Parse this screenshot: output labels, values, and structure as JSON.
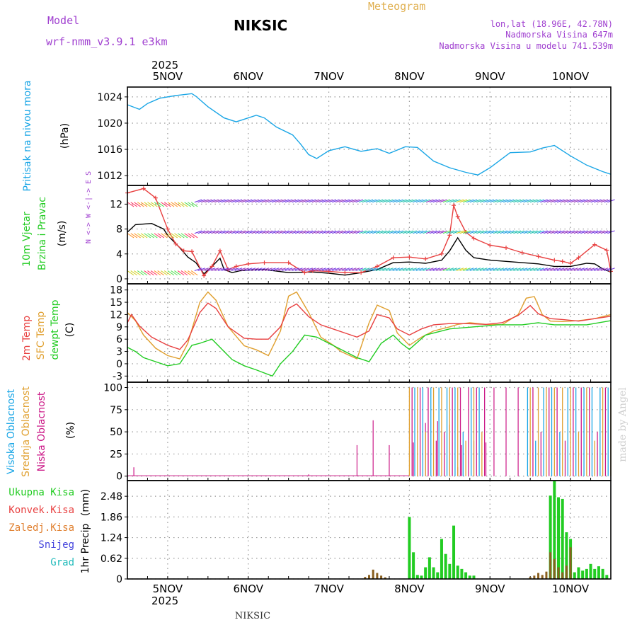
{
  "header": {
    "model_label": "Model",
    "model_name": "wrf-nmm_v3.9.1  e3km",
    "station": "NIKSIC",
    "meteogram": "Meteogram",
    "lonlat": "lon,lat (18.96E, 42.78N)",
    "elevation": "Nadmorska Visina 647m",
    "model_elevation": "Nadmorska Visina u modelu 741.539m",
    "footer_station": "NIKSIC",
    "credit": "made by Angel"
  },
  "colors": {
    "pressure": "#1aa6e6",
    "wind_speed": "#000000",
    "gust": "#e84040",
    "temp2m": "#e84040",
    "sfc": "#e0a030",
    "dewpt": "#22cc22",
    "high_cloud": "#1aa6e6",
    "mid_cloud": "#e0a030",
    "low_cloud": "#cc1a88",
    "total_precip": "#22cc22",
    "conv_precip": "#e84040",
    "frz_precip": "#e08030",
    "snow": "#4444dd",
    "hail": "#22bbbb",
    "violet": "#a040d0"
  },
  "chart_data": {
    "type": "line",
    "days": [
      "5NOV",
      "6NOV",
      "7NOV",
      "8NOV",
      "9NOV",
      "10NOV"
    ],
    "year": "2025",
    "x_start_day": -0.5,
    "x_end_day": 5.5,
    "panels": [
      {
        "id": "pressure",
        "ylabel_title": "Pritisak na nivou mora",
        "unit": "(hPa)",
        "yticks": [
          1012,
          1016,
          1020,
          1024
        ],
        "ylim": [
          1010.5,
          1025.5
        ],
        "series": [
          {
            "name": "Pritisak",
            "color_key": "pressure",
            "x": [
              -0.5,
              -0.35,
              -0.25,
              -0.1,
              0.1,
              0.3,
              0.35,
              0.5,
              0.7,
              0.85,
              0.95,
              1.1,
              1.2,
              1.35,
              1.55,
              1.65,
              1.75,
              1.85,
              2.0,
              2.2,
              2.4,
              2.6,
              2.75,
              2.95,
              3.1,
              3.3,
              3.5,
              3.7,
              3.85,
              4.0,
              4.25,
              4.5,
              4.65,
              4.8,
              5.0,
              5.2,
              5.4,
              5.5
            ],
            "y": [
              1022.8,
              1022.1,
              1023.0,
              1023.8,
              1024.2,
              1024.5,
              1024.1,
              1022.5,
              1020.8,
              1020.2,
              1020.6,
              1021.2,
              1020.8,
              1019.4,
              1018.2,
              1016.8,
              1015.2,
              1014.6,
              1015.8,
              1016.4,
              1015.7,
              1016.1,
              1015.4,
              1016.4,
              1016.3,
              1014.2,
              1013.2,
              1012.5,
              1012.1,
              1013.2,
              1015.5,
              1015.6,
              1016.2,
              1016.6,
              1015.0,
              1013.6,
              1012.6,
              1012.2
            ]
          }
        ]
      },
      {
        "id": "wind",
        "ylabel_title": "10m Vjetar",
        "ylabel_sub": "Brzina i Pravac",
        "unit": "(m/s)",
        "yticks": [
          0,
          4,
          8,
          12
        ],
        "ylim": [
          -0.8,
          15
        ],
        "compass": "N <-> W <-|-> E S",
        "series": [
          {
            "name": "Brzina vjetra",
            "color_key": "wind_speed",
            "x": [
              -0.5,
              -0.4,
              -0.2,
              -0.05,
              0.0,
              0.15,
              0.25,
              0.35,
              0.45,
              0.55,
              0.65,
              0.7,
              0.8,
              0.9,
              1.0,
              1.2,
              1.5,
              1.8,
              2.0,
              2.2,
              2.4,
              2.6,
              2.8,
              3.0,
              3.2,
              3.4,
              3.5,
              3.6,
              3.7,
              3.8,
              4.0,
              4.2,
              4.4,
              4.6,
              4.8,
              5.0,
              5.2,
              5.3,
              5.4,
              5.5
            ],
            "y": [
              7.5,
              8.7,
              8.9,
              8.0,
              7.0,
              5.0,
              3.5,
              2.6,
              0.8,
              2.0,
              3.3,
              1.5,
              1.0,
              1.3,
              1.4,
              1.5,
              1.0,
              1.1,
              0.9,
              0.6,
              1.0,
              1.5,
              2.6,
              2.7,
              2.5,
              3.0,
              4.5,
              6.6,
              4.6,
              3.4,
              3.0,
              2.8,
              2.6,
              2.4,
              2.0,
              2.0,
              2.5,
              2.4,
              1.6,
              1.1
            ]
          },
          {
            "name": "Udar vjetra",
            "color_key": "gust",
            "x": [
              -0.5,
              -0.3,
              -0.15,
              0.0,
              0.1,
              0.2,
              0.3,
              0.45,
              0.55,
              0.65,
              0.75,
              0.85,
              1.0,
              1.2,
              1.5,
              1.7,
              1.8,
              2.0,
              2.2,
              2.4,
              2.6,
              2.8,
              3.0,
              3.2,
              3.4,
              3.5,
              3.55,
              3.6,
              3.7,
              3.8,
              4.0,
              4.2,
              4.4,
              4.6,
              4.8,
              4.9,
              5.0,
              5.1,
              5.3,
              5.45,
              5.5
            ],
            "y": [
              13.8,
              14.5,
              13.0,
              8.0,
              5.6,
              4.5,
              4.4,
              0.5,
              2.0,
              4.5,
              1.5,
              2.0,
              2.4,
              2.6,
              2.6,
              1.0,
              1.3,
              1.2,
              1.0,
              1.0,
              2.0,
              3.4,
              3.5,
              3.2,
              4.0,
              7.0,
              11.8,
              10.0,
              7.5,
              6.5,
              5.4,
              5.0,
              4.2,
              3.6,
              3.0,
              2.8,
              2.5,
              3.4,
              5.5,
              4.6,
              1.2
            ]
          }
        ]
      },
      {
        "id": "temp",
        "ylabel_title": "2m Temp",
        "ylabel_sub": "SFC Temp",
        "ylabel_sub2": "dewpt Temp",
        "unit": "(C)",
        "yticks": [
          -3,
          0,
          3,
          6,
          9,
          12,
          15,
          18
        ],
        "ylim": [
          -4.5,
          19.5
        ],
        "series": [
          {
            "name": "SFC Temp",
            "color_key": "sfc",
            "x": [
              -0.5,
              -0.4,
              -0.3,
              -0.15,
              0.0,
              0.15,
              0.25,
              0.4,
              0.5,
              0.6,
              0.75,
              0.95,
              1.1,
              1.25,
              1.4,
              1.5,
              1.6,
              1.75,
              1.9,
              2.05,
              2.15,
              2.35,
              2.5,
              2.6,
              2.75,
              2.85,
              3.0,
              3.15,
              3.3,
              3.5,
              3.6,
              3.75,
              3.95,
              4.15,
              4.35,
              4.45,
              4.55,
              4.65,
              4.75,
              4.9,
              5.1,
              5.3,
              5.5
            ],
            "y": [
              12.5,
              10.5,
              7.0,
              3.8,
              2.0,
              1.2,
              5.0,
              15.0,
              17.5,
              15.5,
              9.0,
              4.4,
              3.4,
              2.0,
              8.0,
              16.5,
              17.5,
              12.5,
              6.5,
              4.6,
              3.0,
              1.2,
              10.0,
              14.3,
              13.0,
              7.5,
              4.5,
              6.5,
              8.0,
              9.0,
              9.6,
              10.0,
              9.6,
              9.5,
              12.0,
              16.0,
              16.4,
              12.0,
              10.4,
              10.3,
              10.5,
              11.0,
              12.0
            ]
          },
          {
            "name": "2m Temp",
            "color_key": "temp2m",
            "x": [
              -0.5,
              -0.45,
              -0.35,
              -0.2,
              0.0,
              0.15,
              0.25,
              0.4,
              0.5,
              0.6,
              0.75,
              0.95,
              1.1,
              1.25,
              1.4,
              1.5,
              1.6,
              1.75,
              1.9,
              2.05,
              2.2,
              2.35,
              2.5,
              2.6,
              2.75,
              2.85,
              3.0,
              3.15,
              3.3,
              3.5,
              3.7,
              3.95,
              4.15,
              4.35,
              4.5,
              4.6,
              4.75,
              4.9,
              5.1,
              5.3,
              5.5
            ],
            "y": [
              10.0,
              12.0,
              9.2,
              6.5,
              4.5,
              3.5,
              5.8,
              12.5,
              14.8,
              13.5,
              9.0,
              6.2,
              6.0,
              6.0,
              9.0,
              13.5,
              14.6,
              11.5,
              9.5,
              8.5,
              7.5,
              6.5,
              8.0,
              12.0,
              11.2,
              8.5,
              7.0,
              8.5,
              9.5,
              9.8,
              9.8,
              9.6,
              10.0,
              11.8,
              14.2,
              12.2,
              11.0,
              10.8,
              10.4,
              11.0,
              11.6
            ]
          },
          {
            "name": "dewpt Temp",
            "color_key": "dewpt",
            "x": [
              -0.5,
              -0.4,
              -0.3,
              -0.15,
              0.0,
              0.15,
              0.3,
              0.4,
              0.55,
              0.7,
              0.8,
              0.95,
              1.1,
              1.3,
              1.4,
              1.55,
              1.7,
              1.85,
              2.0,
              2.2,
              2.35,
              2.5,
              2.65,
              2.8,
              2.9,
              3.0,
              3.2,
              3.5,
              3.8,
              4.1,
              4.4,
              4.6,
              4.8,
              5.0,
              5.2,
              5.5
            ],
            "y": [
              4.0,
              3.0,
              1.5,
              0.5,
              -0.5,
              0.0,
              4.5,
              5.0,
              6.0,
              3.0,
              1.0,
              -0.5,
              -1.5,
              -3.0,
              0.0,
              3.0,
              7.0,
              6.5,
              5.0,
              3.0,
              1.5,
              0.5,
              5.0,
              7.0,
              5.0,
              3.5,
              7.0,
              8.5,
              9.0,
              9.5,
              9.5,
              10.0,
              9.5,
              9.5,
              9.5,
              10.5
            ]
          }
        ]
      },
      {
        "id": "cloud",
        "ylabel_title": "Visoka Oblacnost",
        "ylabel_sub": "Srednja Oblacnost",
        "ylabel_sub2": "Niska Oblacnost",
        "unit": "(%)",
        "yticks": [
          0,
          25,
          50,
          75,
          100
        ],
        "ylim": [
          -5,
          106
        ],
        "low_spikes": {
          "x": [
            -0.42,
            1.75,
            2.35,
            2.55,
            2.75,
            3.05,
            3.2,
            3.35,
            3.5,
            3.6,
            3.65,
            3.8,
            3.95
          ],
          "y": [
            10,
            2,
            35,
            63,
            35,
            38,
            60,
            62,
            58,
            10,
            35,
            40,
            38
          ]
        },
        "dense_start_day": 3.0,
        "dense_gap": [
          3.95,
          4.45
        ],
        "dense_end_day": 5.5
      },
      {
        "id": "precip",
        "ylabel_title": "1hr Precip",
        "unit": "(mm)",
        "yticks": [
          0,
          0.62,
          1.24,
          1.86,
          2.48
        ],
        "ylim": [
          0,
          2.95
        ],
        "legend": [
          "Ukupna  Kisa",
          "Konvek.Kisa",
          "Zaledj.Kisa",
          "Snijeg",
          "Grad"
        ],
        "total_bars": {
          "x": [
            3.0,
            3.05,
            3.1,
            3.15,
            3.2,
            3.25,
            3.3,
            3.35,
            3.4,
            3.45,
            3.5,
            3.55,
            3.6,
            3.65,
            3.7,
            3.75,
            3.8,
            4.75,
            4.8,
            4.85,
            4.9,
            4.95,
            5.0,
            5.05,
            5.1,
            5.15,
            5.2,
            5.25,
            5.3,
            5.35,
            5.4,
            5.45
          ],
          "y": [
            1.86,
            0.8,
            0.12,
            0.1,
            0.35,
            0.65,
            0.35,
            0.2,
            1.2,
            0.75,
            0.45,
            1.6,
            0.4,
            0.3,
            0.2,
            0.1,
            0.1,
            2.5,
            2.95,
            2.45,
            2.4,
            1.4,
            1.2,
            0.2,
            0.35,
            0.25,
            0.3,
            0.45,
            0.3,
            0.38,
            0.3,
            0.12
          ]
        },
        "conv_bars": {
          "x": [
            2.45,
            2.5,
            2.55,
            2.6,
            2.65,
            2.7,
            4.5,
            4.55,
            4.6,
            4.65,
            4.7,
            4.75,
            4.8,
            4.85,
            4.9,
            4.95,
            5.0
          ],
          "y": [
            0.06,
            0.12,
            0.28,
            0.18,
            0.1,
            0.05,
            0.06,
            0.1,
            0.18,
            0.12,
            0.22,
            0.8,
            0.6,
            0.35,
            0.2,
            0.4,
            0.95
          ]
        }
      }
    ]
  }
}
